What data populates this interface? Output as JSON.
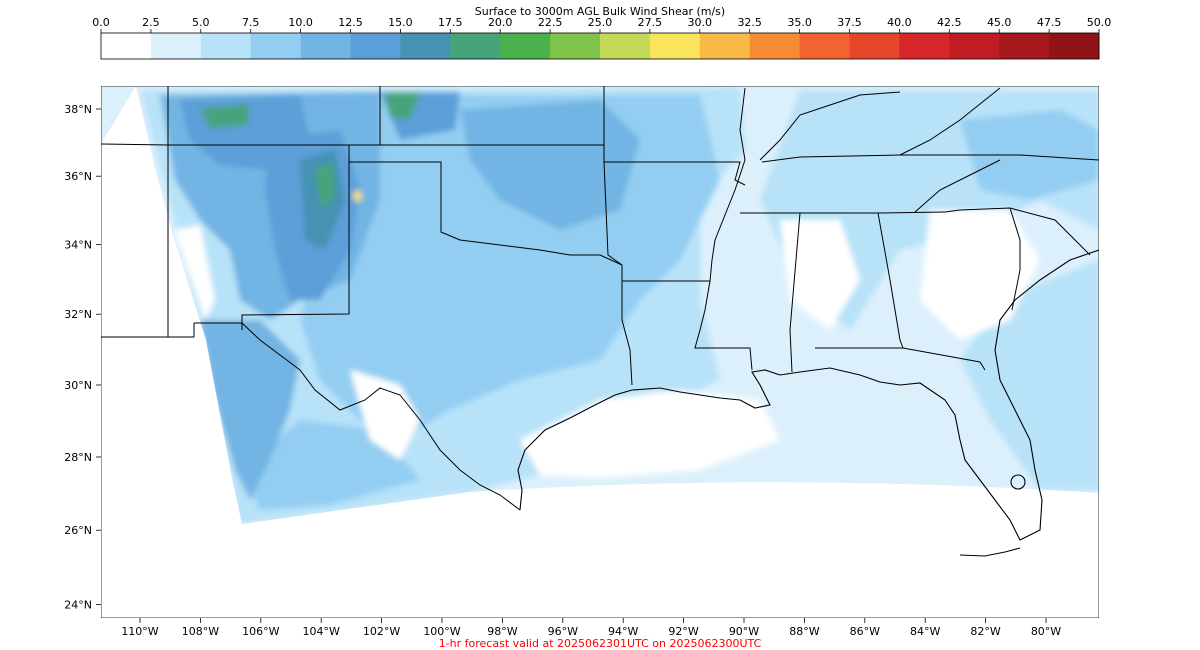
{
  "colorbar": {
    "title": "Surface to 3000m AGL Bulk Wind Shear (m/s)",
    "ticks": [
      "0.0",
      "2.5",
      "5.0",
      "7.5",
      "10.0",
      "12.5",
      "15.0",
      "17.5",
      "20.0",
      "22.5",
      "25.0",
      "27.5",
      "30.0",
      "32.5",
      "35.0",
      "37.5",
      "40.0",
      "42.5",
      "45.0",
      "47.5",
      "50.0"
    ],
    "colors": [
      "#ffffff",
      "#dcf0fc",
      "#b8e2f8",
      "#93cef2",
      "#72b4e3",
      "#5b9fd9",
      "#4592b3",
      "#46a47a",
      "#49b24d",
      "#80c34a",
      "#c2d856",
      "#fae45b",
      "#f8b946",
      "#f58c34",
      "#f16330",
      "#e54528",
      "#d72629",
      "#c01c24",
      "#a8191e",
      "#8f1418"
    ]
  },
  "map": {
    "lat_labels": [
      "38°N",
      "36°N",
      "34°N",
      "32°N",
      "30°N",
      "28°N",
      "26°N",
      "24°N"
    ],
    "lon_labels": [
      "110°W",
      "108°W",
      "106°W",
      "104°W",
      "102°W",
      "100°W",
      "98°W",
      "96°W",
      "94°W",
      "92°W",
      "90°W",
      "88°W",
      "86°W",
      "84°W",
      "82°W",
      "80°W"
    ],
    "lat_values": [
      38,
      36,
      34,
      32,
      30,
      28,
      26,
      24
    ],
    "lon_values": [
      -110,
      -108,
      -106,
      -104,
      -102,
      -100,
      -98,
      -96,
      -94,
      -92,
      -90,
      -88,
      -86,
      -84,
      -82,
      -80
    ]
  },
  "footer": {
    "forecast_text": "1-hr forecast valid at 2025062301UTC on 2025062300UTC",
    "forecast_color": "#ff0000"
  }
}
